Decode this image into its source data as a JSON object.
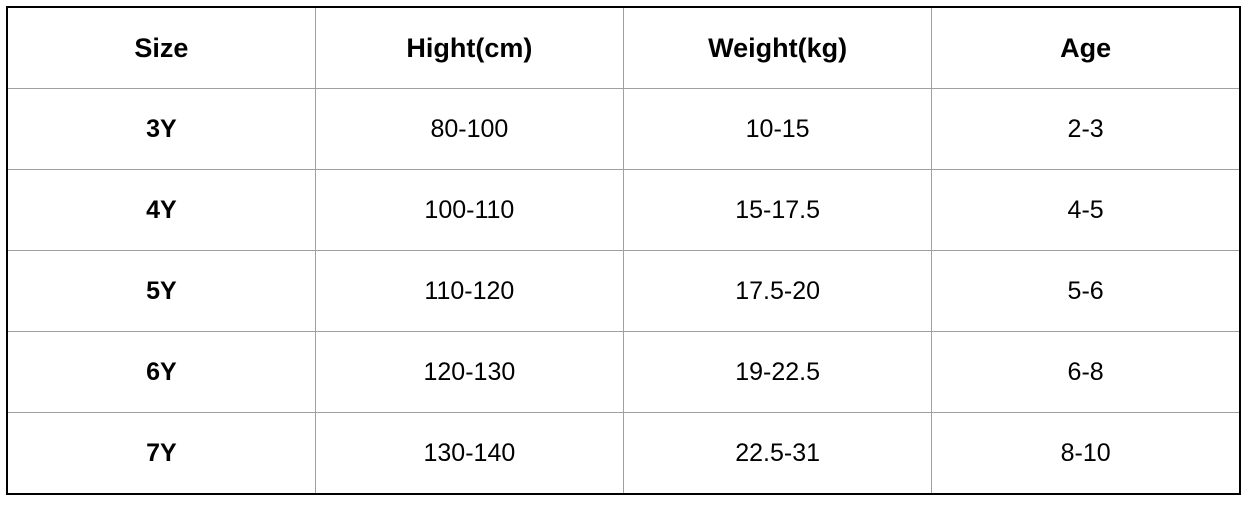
{
  "table": {
    "header": [
      "Size",
      "Hight(cm)",
      "Weight(kg)",
      "Age"
    ],
    "rows": [
      [
        "3Y",
        "80-100",
        "10-15",
        "2-3"
      ],
      [
        "4Y",
        "100-110",
        "15-17.5",
        "4-5"
      ],
      [
        "5Y",
        "110-120",
        "17.5-20",
        "5-6"
      ],
      [
        "6Y",
        "120-130",
        "19-22.5",
        "6-8"
      ],
      [
        "7Y",
        "130-140",
        "22.5-31",
        "8-10"
      ]
    ]
  }
}
